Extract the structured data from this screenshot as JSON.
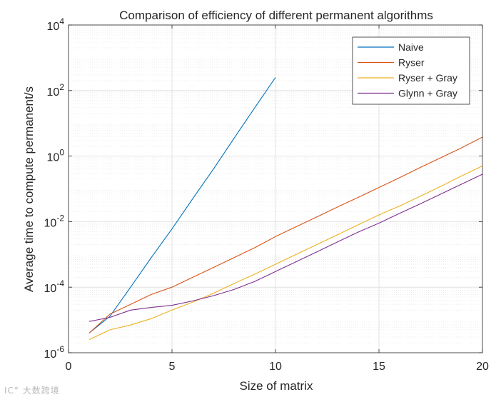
{
  "chart_data": {
    "type": "line",
    "title": "Comparison of efficiency of different permanent algorithms",
    "xlabel": "Size of matrix",
    "ylabel": "Average time to compute permanent/s",
    "xlim": [
      0,
      20
    ],
    "ylim_log10": [
      -6,
      4
    ],
    "yscale": "log",
    "grid": true,
    "minor_grid": true,
    "legend_position": "top-right",
    "x_ticks": [
      0,
      5,
      10,
      15,
      20
    ],
    "y_tick_exponents": [
      -6,
      -4,
      -2,
      0,
      2,
      4
    ],
    "y_tick_base": "10",
    "series": [
      {
        "name": "Naive",
        "color": "#0072BD",
        "x": [
          1,
          2,
          3,
          4,
          5,
          6,
          7,
          8,
          9,
          10
        ],
        "y": [
          4e-06,
          1.3e-05,
          0.0001,
          0.0008,
          0.006,
          0.05,
          0.4,
          3.5,
          30,
          250
        ]
      },
      {
        "name": "Ryser",
        "color": "#D95319",
        "x": [
          1,
          2,
          3,
          4,
          5,
          6,
          7,
          8,
          9,
          10,
          11,
          12,
          13,
          14,
          15,
          16,
          17,
          18,
          19,
          20
        ],
        "y": [
          4e-06,
          1.5e-05,
          3e-05,
          6e-05,
          0.0001,
          0.0002,
          0.0004,
          0.0008,
          0.0016,
          0.0035,
          0.007,
          0.014,
          0.028,
          0.055,
          0.11,
          0.22,
          0.45,
          0.9,
          1.8,
          3.8
        ]
      },
      {
        "name": "Ryser + Gray",
        "color": "#EDB120",
        "x": [
          1,
          2,
          3,
          4,
          5,
          6,
          7,
          8,
          9,
          10,
          11,
          12,
          13,
          14,
          15,
          16,
          17,
          18,
          19,
          20
        ],
        "y": [
          2.5e-06,
          5e-06,
          7e-06,
          1.1e-05,
          2e-05,
          3.5e-05,
          6.5e-05,
          0.00013,
          0.00025,
          0.0005,
          0.001,
          0.002,
          0.004,
          0.008,
          0.016,
          0.03,
          0.06,
          0.12,
          0.25,
          0.5
        ]
      },
      {
        "name": "Glynn + Gray",
        "color": "#7E2F8E",
        "x": [
          1,
          2,
          3,
          4,
          5,
          6,
          7,
          8,
          9,
          10,
          11,
          12,
          13,
          14,
          15,
          16,
          17,
          18,
          19,
          20
        ],
        "y": [
          9e-06,
          1.2e-05,
          2e-05,
          2.4e-05,
          2.8e-05,
          3.8e-05,
          5.5e-05,
          8.5e-05,
          0.00015,
          0.0003,
          0.0006,
          0.0012,
          0.0024,
          0.0048,
          0.009,
          0.018,
          0.035,
          0.07,
          0.14,
          0.28
        ]
      }
    ]
  },
  "watermark": "IC° 大数跨境"
}
